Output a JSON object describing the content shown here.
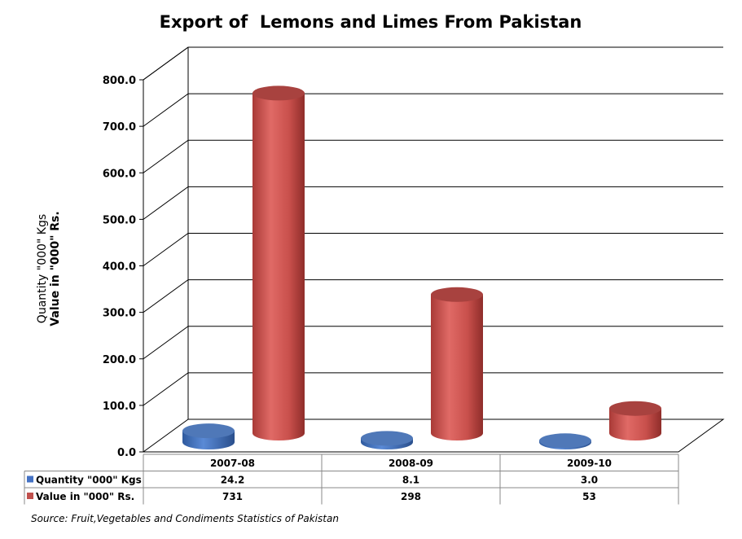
{
  "chart_data": {
    "type": "bar",
    "style": "3d-cylinder",
    "title": "Export of  Lemons and Limes From Pakistan",
    "ylabel_lines": [
      "Quantity \"000\" Kgs",
      "Value in \"000\" Rs."
    ],
    "categories": [
      "2007-08",
      "2008-09",
      "2009-10"
    ],
    "ylim": [
      0,
      800
    ],
    "ytick_step": 100,
    "ytick_labels": [
      "0.0",
      "100.0",
      "200.0",
      "300.0",
      "400.0",
      "500.0",
      "600.0",
      "700.0",
      "800.0"
    ],
    "grid": true,
    "legend": "data-table-below",
    "series": [
      {
        "name": "Quantity \"000\" Kgs",
        "values": [
          24.2,
          8.1,
          3.0
        ],
        "value_labels": [
          "24.2",
          "8.1",
          "3.0"
        ],
        "color": "#4472c4"
      },
      {
        "name": "Value in \"000\" Rs.",
        "values": [
          731,
          298,
          53
        ],
        "value_labels": [
          "731",
          "298",
          "53"
        ],
        "color": "#c0504d"
      }
    ]
  },
  "source": "Source: Fruit,Vegetables and Condiments Statistics of Pakistan"
}
